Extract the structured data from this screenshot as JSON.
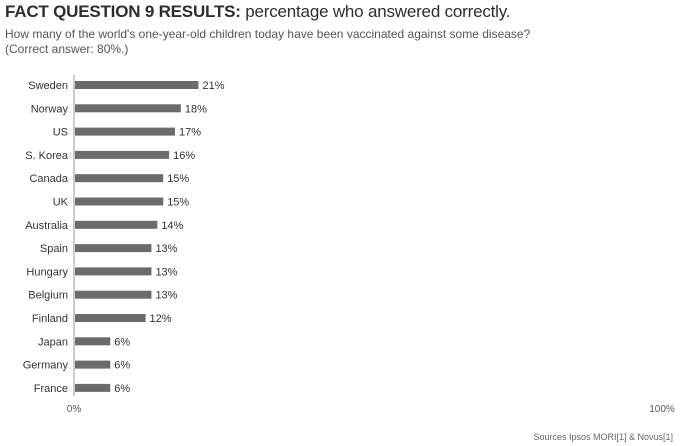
{
  "header": {
    "title_bold": "FACT QUESTION 9 RESULTS:",
    "title_rest": " percentage who answered correctly.",
    "question": "How many of the world's one-year-old children today have been vaccinated against some disease?",
    "answer": "(Correct answer: 80%.)"
  },
  "chart_data": {
    "type": "bar",
    "orientation": "horizontal",
    "categories": [
      "Sweden",
      "Norway",
      "US",
      "S. Korea",
      "Canada",
      "UK",
      "Australia",
      "Spain",
      "Hungary",
      "Belgium",
      "Finland",
      "Japan",
      "Germany",
      "France"
    ],
    "values": [
      21,
      18,
      17,
      16,
      15,
      15,
      14,
      13,
      13,
      13,
      12,
      6,
      6,
      6
    ],
    "value_labels": [
      "21%",
      "18%",
      "17%",
      "16%",
      "15%",
      "15%",
      "14%",
      "13%",
      "13%",
      "13%",
      "12%",
      "6%",
      "6%",
      "6%"
    ],
    "xlim": [
      0,
      100
    ],
    "x_tick_labels": [
      "0%",
      "100%"
    ],
    "bar_color": "#6b6b6b",
    "grid": false
  },
  "footer": {
    "source": "Sources Ipsos MORI[1] & Novus[1]"
  }
}
